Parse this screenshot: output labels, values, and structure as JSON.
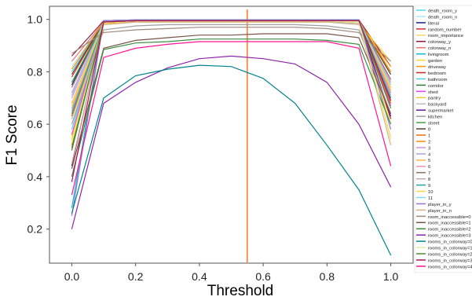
{
  "chart_data": {
    "type": "line",
    "xlabel": "Threshold",
    "ylabel": "F1 Score",
    "xlim": [
      -0.07,
      1.07
    ],
    "ylim": [
      0.07,
      1.05
    ],
    "x_ticks": [
      "0.0",
      "0.2",
      "0.4",
      "0.6",
      "0.8",
      "1.0"
    ],
    "x_tick_values": [
      0,
      0.2,
      0.4,
      0.6,
      0.8,
      1.0
    ],
    "y_ticks": [
      "0.2",
      "0.4",
      "0.6",
      "0.8",
      "1.0"
    ],
    "y_tick_values": [
      0.2,
      0.4,
      0.6,
      0.8,
      1.0
    ],
    "vline": {
      "x": 0.55,
      "color": "#f0955a"
    },
    "legend_position": "right",
    "x": [
      0,
      0.1,
      0.2,
      0.3,
      0.4,
      0.5,
      0.6,
      0.7,
      0.8,
      0.9,
      1.0
    ],
    "series": [
      {
        "name": "death_room_y",
        "color": "#4fd8e8",
        "values": [
          0.8,
          0.99,
          0.995,
          0.995,
          0.995,
          0.995,
          0.995,
          0.995,
          0.995,
          0.995,
          0.77
        ]
      },
      {
        "name": "death_room_n",
        "color": "#a8e8f8",
        "values": [
          0.82,
          0.99,
          0.995,
          0.995,
          0.995,
          0.995,
          0.995,
          0.995,
          0.995,
          0.995,
          0.8
        ]
      },
      {
        "name": "literal",
        "color": "#1a237e",
        "values": [
          0.75,
          0.995,
          0.998,
          0.998,
          0.998,
          0.998,
          0.998,
          0.998,
          0.998,
          0.998,
          0.7
        ]
      },
      {
        "name": "random_number",
        "color": "#d32f2f",
        "values": [
          0.78,
          0.99,
          0.995,
          0.995,
          0.995,
          0.995,
          0.995,
          0.995,
          0.995,
          0.995,
          0.72
        ]
      },
      {
        "name": "room_importance",
        "color": "#f5d76e",
        "values": [
          0.6,
          0.99,
          0.995,
          0.995,
          0.995,
          0.995,
          0.995,
          0.995,
          0.995,
          0.99,
          0.55
        ]
      },
      {
        "name": "colorway_y",
        "color": "#8e1b3b",
        "values": [
          0.86,
          0.995,
          0.998,
          0.998,
          0.998,
          0.998,
          0.998,
          0.998,
          0.998,
          0.998,
          0.82
        ]
      },
      {
        "name": "colorway_n",
        "color": "#e57373",
        "values": [
          0.84,
          0.99,
          0.995,
          0.995,
          0.995,
          0.995,
          0.995,
          0.995,
          0.995,
          0.995,
          0.8
        ]
      },
      {
        "name": "livingroom",
        "color": "#00bcd4",
        "values": [
          0.28,
          0.995,
          0.998,
          0.998,
          0.998,
          0.998,
          0.998,
          0.998,
          0.998,
          0.998,
          0.62
        ]
      },
      {
        "name": "garden",
        "color": "#fdd835",
        "values": [
          0.55,
          0.99,
          0.995,
          0.995,
          0.995,
          0.995,
          0.995,
          0.995,
          0.995,
          0.99,
          0.6
        ]
      },
      {
        "name": "driveway",
        "color": "#ff9800",
        "values": [
          0.52,
          0.98,
          0.99,
          0.99,
          0.99,
          0.99,
          0.99,
          0.99,
          0.99,
          0.98,
          0.82
        ]
      },
      {
        "name": "bedroom",
        "color": "#c62828",
        "values": [
          0.63,
          0.99,
          0.995,
          0.995,
          0.995,
          0.995,
          0.995,
          0.995,
          0.995,
          0.995,
          0.62
        ]
      },
      {
        "name": "bathroom",
        "color": "#4dd0e1",
        "values": [
          0.58,
          0.99,
          0.995,
          0.995,
          0.995,
          0.995,
          0.995,
          0.995,
          0.995,
          0.99,
          0.76
        ]
      },
      {
        "name": "corridor",
        "color": "#2e7d32",
        "values": [
          0.5,
          0.99,
          0.995,
          0.995,
          0.995,
          0.995,
          0.995,
          0.995,
          0.995,
          0.995,
          0.68
        ]
      },
      {
        "name": "shed",
        "color": "#e040fb",
        "values": [
          0.56,
          0.99,
          0.995,
          0.995,
          0.995,
          0.995,
          0.995,
          0.995,
          0.995,
          0.995,
          0.67
        ]
      },
      {
        "name": "pantry",
        "color": "#ffca28",
        "values": [
          0.54,
          0.985,
          0.99,
          0.99,
          0.99,
          0.99,
          0.99,
          0.99,
          0.99,
          0.985,
          0.84
        ]
      },
      {
        "name": "backyard",
        "color": "#bdbdbd",
        "values": [
          0.62,
          0.98,
          0.99,
          0.99,
          0.99,
          0.99,
          0.99,
          0.99,
          0.99,
          0.98,
          0.75
        ]
      },
      {
        "name": "supermarket",
        "color": "#6a1b9a",
        "values": [
          0.44,
          0.99,
          0.995,
          0.995,
          0.995,
          0.995,
          0.995,
          0.995,
          0.995,
          0.995,
          0.63
        ]
      },
      {
        "name": "kitchen",
        "color": "#9e9e9e",
        "values": [
          0.6,
          0.96,
          0.975,
          0.98,
          0.98,
          0.98,
          0.98,
          0.98,
          0.975,
          0.96,
          0.64
        ]
      },
      {
        "name": "street",
        "color": "#43a047",
        "values": [
          0.76,
          0.99,
          0.995,
          0.995,
          0.995,
          0.995,
          0.995,
          0.995,
          0.995,
          0.995,
          0.79
        ]
      },
      {
        "name": "0",
        "color": "#5d4037",
        "values": [
          0.79,
          0.99,
          0.995,
          0.995,
          0.995,
          0.995,
          0.995,
          0.995,
          0.995,
          0.995,
          0.79
        ]
      },
      {
        "name": "1",
        "color": "#ef6c00",
        "values": [
          0.63,
          0.99,
          0.995,
          0.995,
          0.995,
          0.995,
          0.995,
          0.995,
          0.995,
          0.995,
          0.68
        ]
      },
      {
        "name": "2",
        "color": "#fb8c00",
        "values": [
          0.81,
          0.99,
          0.995,
          0.995,
          0.995,
          0.995,
          0.995,
          0.995,
          0.995,
          0.995,
          0.8
        ]
      },
      {
        "name": "3",
        "color": "#ce93d8",
        "values": [
          0.7,
          0.99,
          0.995,
          0.995,
          0.995,
          0.995,
          0.995,
          0.995,
          0.995,
          0.995,
          0.74
        ]
      },
      {
        "name": "4",
        "color": "#b39ddb",
        "values": [
          0.65,
          0.99,
          0.995,
          0.995,
          0.995,
          0.995,
          0.995,
          0.995,
          0.995,
          0.995,
          0.71
        ]
      },
      {
        "name": "5",
        "color": "#ffb74d",
        "values": [
          0.68,
          0.99,
          0.995,
          0.995,
          0.995,
          0.995,
          0.995,
          0.995,
          0.995,
          0.995,
          0.73
        ]
      },
      {
        "name": "6",
        "color": "#f48fb1",
        "values": [
          0.72,
          0.99,
          0.995,
          0.995,
          0.995,
          0.995,
          0.995,
          0.995,
          0.995,
          0.995,
          0.76
        ]
      },
      {
        "name": "7",
        "color": "#8d6e63",
        "values": [
          0.74,
          0.99,
          0.995,
          0.995,
          0.995,
          0.995,
          0.995,
          0.995,
          0.995,
          0.995,
          0.77
        ]
      },
      {
        "name": "8",
        "color": "#bcaaa4",
        "values": [
          0.66,
          0.99,
          0.995,
          0.995,
          0.995,
          0.995,
          0.995,
          0.995,
          0.995,
          0.995,
          0.72
        ]
      },
      {
        "name": "9",
        "color": "#26a69a",
        "values": [
          0.64,
          0.99,
          0.995,
          0.995,
          0.995,
          0.995,
          0.995,
          0.995,
          0.995,
          0.995,
          0.7
        ]
      },
      {
        "name": "10",
        "color": "#ffd54f",
        "values": [
          0.67,
          0.99,
          0.995,
          0.995,
          0.995,
          0.995,
          0.995,
          0.995,
          0.995,
          0.995,
          0.74
        ]
      },
      {
        "name": "11",
        "color": "#81d4fa",
        "values": [
          0.71,
          0.99,
          0.995,
          0.995,
          0.995,
          0.995,
          0.995,
          0.995,
          0.995,
          0.995,
          0.75
        ]
      },
      {
        "name": "player_in_y",
        "color": "#9575cd",
        "values": [
          0.25,
          0.995,
          0.998,
          0.998,
          0.998,
          0.998,
          0.998,
          0.998,
          0.998,
          0.998,
          0.58
        ]
      },
      {
        "name": "player_in_n",
        "color": "#d4b483",
        "values": [
          0.45,
          0.98,
          0.99,
          0.99,
          0.99,
          0.99,
          0.99,
          0.99,
          0.99,
          0.985,
          0.52
        ]
      },
      {
        "name": "room_inaccessible=0",
        "color": "#a1887f",
        "values": [
          0.87,
          0.95,
          0.96,
          0.965,
          0.97,
          0.97,
          0.97,
          0.97,
          0.965,
          0.95,
          0.84
        ]
      },
      {
        "name": "room_inaccessible=1",
        "color": "#795548",
        "values": [
          0.43,
          0.89,
          0.92,
          0.93,
          0.94,
          0.94,
          0.945,
          0.945,
          0.945,
          0.93,
          0.64
        ]
      },
      {
        "name": "room_inaccessible=2",
        "color": "#388e3c",
        "values": [
          0.4,
          0.885,
          0.91,
          0.915,
          0.925,
          0.925,
          0.925,
          0.925,
          0.92,
          0.905,
          0.6
        ]
      },
      {
        "name": "room_inaccessible=3",
        "color": "#8e24aa",
        "values": [
          0.2,
          0.68,
          0.76,
          0.815,
          0.85,
          0.86,
          0.85,
          0.83,
          0.76,
          0.6,
          0.36
        ]
      },
      {
        "name": "rooms_in_colorway=0",
        "color": "#00838f",
        "values": [
          0.26,
          0.7,
          0.785,
          0.81,
          0.825,
          0.82,
          0.775,
          0.68,
          0.52,
          0.35,
          0.1
        ]
      },
      {
        "name": "rooms_in_colorway=1",
        "color": "#e6ee9c",
        "values": [
          0.53,
          0.99,
          0.995,
          0.995,
          0.995,
          0.995,
          0.995,
          0.995,
          0.995,
          0.99,
          0.54
        ]
      },
      {
        "name": "rooms_in_colorway=2",
        "color": "#558b2f",
        "values": [
          0.51,
          0.99,
          0.995,
          0.995,
          0.995,
          0.995,
          0.995,
          0.995,
          0.995,
          0.995,
          0.66
        ]
      },
      {
        "name": "rooms_in_colorway=3",
        "color": "#ad1457",
        "values": [
          0.38,
          0.99,
          0.995,
          0.995,
          0.995,
          0.995,
          0.995,
          0.995,
          0.995,
          0.995,
          0.69
        ]
      },
      {
        "name": "rooms_in_colorway=4",
        "color": "#ff1493",
        "values": [
          0.33,
          0.855,
          0.89,
          0.905,
          0.915,
          0.915,
          0.915,
          0.915,
          0.915,
          0.89,
          0.44
        ]
      }
    ]
  }
}
